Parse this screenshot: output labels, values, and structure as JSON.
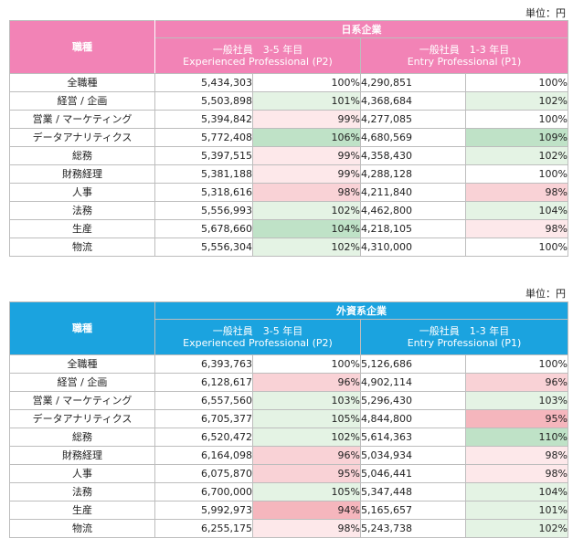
{
  "unit_label": "単位：円",
  "tables": [
    {
      "company_type": "日系企業",
      "role_header": "職種",
      "level1": {
        "jp": "一般社員　3-5 年目",
        "en": "Experienced Professional (P2)"
      },
      "level2": {
        "jp": "一般社員　1-3 年目",
        "en": "Entry Professional (P1)"
      },
      "rows": [
        {
          "category": "全職種",
          "v1": "5,434,303",
          "p1": "100%",
          "c1": "",
          "v2": "4,290,851",
          "p2": "100%",
          "c2": ""
        },
        {
          "category": "経営 / 企画",
          "v1": "5,503,898",
          "p1": "101%",
          "c1": "g-light",
          "v2": "4,368,684",
          "p2": "102%",
          "c2": "g-light"
        },
        {
          "category": "営業 / マーケティング",
          "v1": "5,394,842",
          "p1": "99%",
          "c1": "r-light",
          "v2": "4,277,085",
          "p2": "100%",
          "c2": ""
        },
        {
          "category": "データアナリティクス",
          "v1": "5,772,408",
          "p1": "106%",
          "c1": "g-strong",
          "v2": "4,680,569",
          "p2": "109%",
          "c2": "g-strong"
        },
        {
          "category": "総務",
          "v1": "5,397,515",
          "p1": "99%",
          "c1": "r-light",
          "v2": "4,358,430",
          "p2": "102%",
          "c2": "g-light"
        },
        {
          "category": "財務経理",
          "v1": "5,381,188",
          "p1": "99%",
          "c1": "r-light",
          "v2": "4,288,128",
          "p2": "100%",
          "c2": ""
        },
        {
          "category": "人事",
          "v1": "5,318,616",
          "p1": "98%",
          "c1": "r-mid",
          "v2": "4,211,840",
          "p2": "98%",
          "c2": "r-mid"
        },
        {
          "category": "法務",
          "v1": "5,556,993",
          "p1": "102%",
          "c1": "g-light",
          "v2": "4,462,800",
          "p2": "104%",
          "c2": "g-light"
        },
        {
          "category": "生産",
          "v1": "5,678,660",
          "p1": "104%",
          "c1": "g-strong",
          "v2": "4,218,105",
          "p2": "98%",
          "c2": "r-light"
        },
        {
          "category": "物流",
          "v1": "5,556,304",
          "p1": "102%",
          "c1": "g-light",
          "v2": "4,310,000",
          "p2": "100%",
          "c2": ""
        }
      ]
    },
    {
      "company_type": "外資系企業",
      "role_header": "職種",
      "level1": {
        "jp": "一般社員　3-5 年目",
        "en": "Experienced Professional (P2)"
      },
      "level2": {
        "jp": "一般社員　1-3 年目",
        "en": "Entry Professional (P1)"
      },
      "rows": [
        {
          "category": "全職種",
          "v1": "6,393,763",
          "p1": "100%",
          "c1": "",
          "v2": "5,126,686",
          "p2": "100%",
          "c2": ""
        },
        {
          "category": "経営 / 企画",
          "v1": "6,128,617",
          "p1": "96%",
          "c1": "r-mid",
          "v2": "4,902,114",
          "p2": "96%",
          "c2": "r-mid"
        },
        {
          "category": "営業 / マーケティング",
          "v1": "6,557,560",
          "p1": "103%",
          "c1": "g-light",
          "v2": "5,296,430",
          "p2": "103%",
          "c2": "g-light"
        },
        {
          "category": "データアナリティクス",
          "v1": "6,705,377",
          "p1": "105%",
          "c1": "g-light",
          "v2": "4,844,800",
          "p2": "95%",
          "c2": "r-strong"
        },
        {
          "category": "総務",
          "v1": "6,520,472",
          "p1": "102%",
          "c1": "g-light",
          "v2": "5,614,363",
          "p2": "110%",
          "c2": "g-strong"
        },
        {
          "category": "財務経理",
          "v1": "6,164,098",
          "p1": "96%",
          "c1": "r-mid",
          "v2": "5,034,934",
          "p2": "98%",
          "c2": "r-light"
        },
        {
          "category": "人事",
          "v1": "6,075,870",
          "p1": "95%",
          "c1": "r-mid",
          "v2": "5,046,441",
          "p2": "98%",
          "c2": "r-light"
        },
        {
          "category": "法務",
          "v1": "6,700,000",
          "p1": "105%",
          "c1": "g-light",
          "v2": "5,347,448",
          "p2": "104%",
          "c2": "g-light"
        },
        {
          "category": "生産",
          "v1": "5,992,973",
          "p1": "94%",
          "c1": "r-strong",
          "v2": "5,165,657",
          "p2": "101%",
          "c2": "g-light"
        },
        {
          "category": "物流",
          "v1": "6,255,175",
          "p1": "98%",
          "c1": "r-light",
          "v2": "5,243,738",
          "p2": "102%",
          "c2": "g-light"
        }
      ]
    }
  ]
}
